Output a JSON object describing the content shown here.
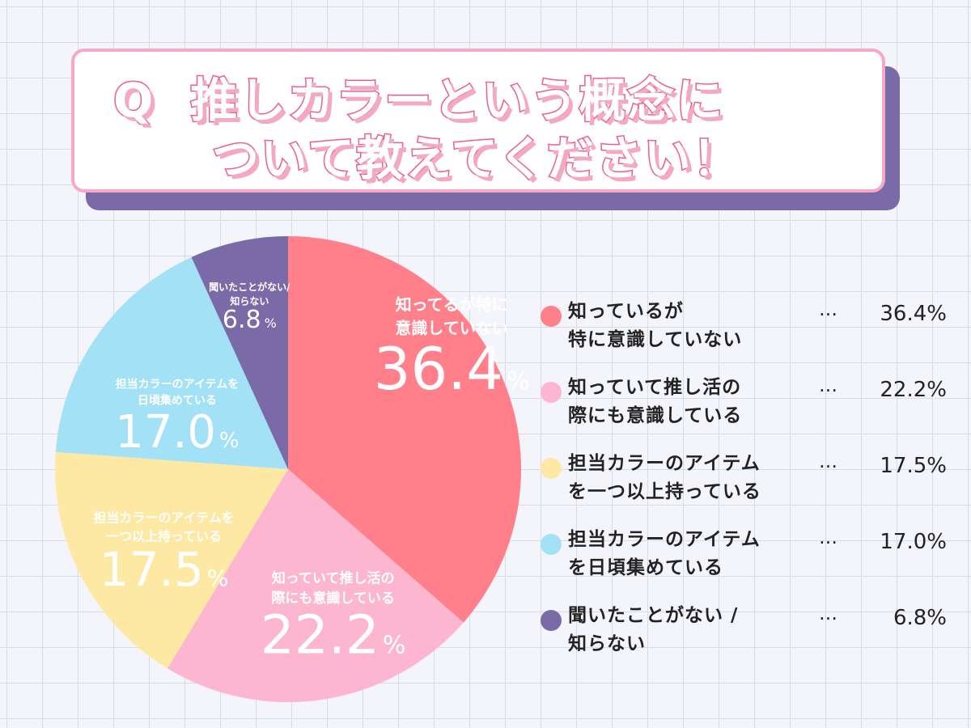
{
  "title": {
    "q": "Q",
    "line1": "推しカラーという概念に",
    "line2": "ついて教えてください！"
  },
  "colors": {
    "slice_known": "#ff7f8a",
    "slice_oshi": "#fdb6cf",
    "slice_one_item": "#fde9a4",
    "slice_collect": "#a2e1f6",
    "slice_unknown": "#7b6aa8",
    "title_pink": "#ec5f8d",
    "title_shadow": "#7b6aa8"
  },
  "chart_data": {
    "type": "pie",
    "slices": [
      {
        "value": 36.4,
        "color": "#ff7f8a",
        "label_lines": [
          "知ってるが特に",
          "意識していない"
        ],
        "value_label": "36.4",
        "pct_sign": "%"
      },
      {
        "value": 22.2,
        "color": "#fdb6cf",
        "label_lines": [
          "知っていて推し活の",
          "際にも意識している"
        ],
        "value_label": "22.2",
        "pct_sign": "%"
      },
      {
        "value": 17.5,
        "color": "#fde9a4",
        "label_lines": [
          "担当カラーのアイテムを",
          "一つ以上持っている"
        ],
        "value_label": "17.5",
        "pct_sign": "%"
      },
      {
        "value": 17.0,
        "color": "#a2e1f6",
        "label_lines": [
          "担当カラーのアイテムを",
          "日頃集めている"
        ],
        "value_label": "17.0",
        "pct_sign": "%"
      },
      {
        "value": 6.8,
        "color": "#7b6aa8",
        "label_lines": [
          "聞いたことがない/",
          "知らない"
        ],
        "value_label": "6.8",
        "pct_sign": "%"
      }
    ]
  },
  "legend": {
    "items": [
      {
        "text": "知っているが\n特に意識していない",
        "dots": "…",
        "value": "36.4%",
        "color": "#ff7f8a"
      },
      {
        "text": "知っていて推し活の\n際にも意識している",
        "dots": "…",
        "value": "22.2%",
        "color": "#fdb6cf"
      },
      {
        "text": "担当カラーのアイテム\nを一つ以上持っている",
        "dots": "…",
        "value": "17.5%",
        "color": "#fde9a4"
      },
      {
        "text": "担当カラーのアイテム\nを日頃集めている",
        "dots": "…",
        "value": "17.0%",
        "color": "#a2e1f6"
      },
      {
        "text": "聞いたことがない /\n知らない",
        "dots": "…",
        "value": "6.8%",
        "color": "#7b6aa8"
      }
    ]
  }
}
